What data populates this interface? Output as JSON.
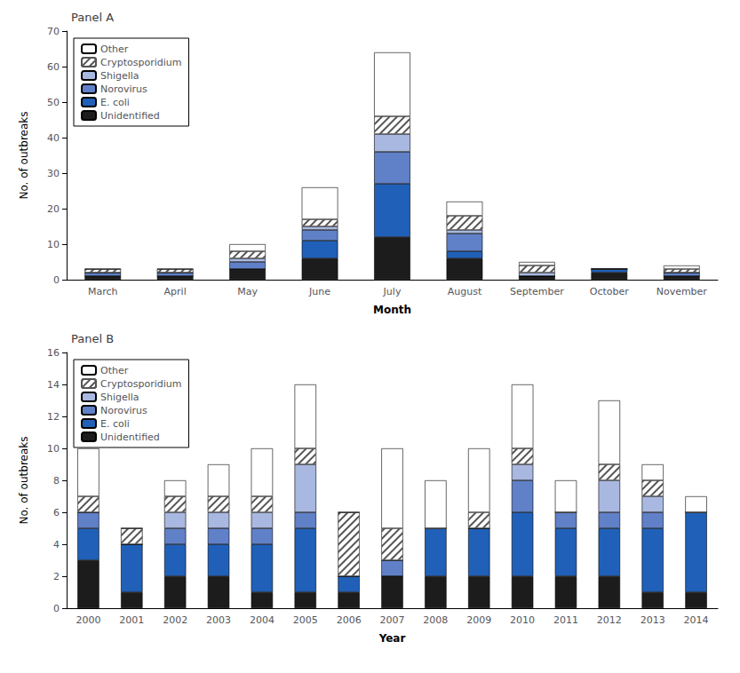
{
  "chart_data": [
    {
      "type": "bar",
      "title": "Panel A",
      "xlabel": "Month",
      "ylabel": "No. of outbreaks",
      "stacked": true,
      "grid": false,
      "legend": "upper left",
      "ylim": [
        0,
        70
      ],
      "yticks": [
        0,
        10,
        20,
        30,
        40,
        50,
        60,
        70
      ],
      "categories": [
        "March",
        "April",
        "May",
        "June",
        "July",
        "August",
        "September",
        "October",
        "November"
      ],
      "series": [
        {
          "name": "Unidentified",
          "color": "#1c1c1c",
          "values": [
            1,
            1,
            3,
            6,
            12,
            6,
            1,
            2,
            1
          ]
        },
        {
          "name": "E. coli",
          "color": "#2060b8",
          "values": [
            0,
            0,
            0,
            5,
            15,
            2,
            0,
            1,
            0
          ]
        },
        {
          "name": "Norovirus",
          "color": "#6080c8",
          "values": [
            1,
            1,
            2,
            3,
            9,
            5,
            0,
            0,
            1
          ]
        },
        {
          "name": "Shigella",
          "color": "#a8b8e0",
          "values": [
            0,
            0,
            1,
            1,
            5,
            1,
            1,
            0,
            0
          ]
        },
        {
          "name": "Cryptosporidium",
          "color": "#ffffff",
          "values": [
            1,
            1,
            2,
            2,
            5,
            4,
            2,
            0,
            1
          ]
        },
        {
          "name": "Other",
          "color": "#ffffff",
          "values": [
            0,
            0,
            2,
            9,
            18,
            4,
            1,
            0,
            1
          ]
        }
      ]
    },
    {
      "type": "bar",
      "title": "Panel B",
      "xlabel": "Year",
      "ylabel": "No. of outbreaks",
      "stacked": true,
      "grid": false,
      "legend": "upper left",
      "ylim": [
        0,
        16
      ],
      "yticks": [
        0,
        2,
        4,
        6,
        8,
        10,
        12,
        14,
        16
      ],
      "categories": [
        "2000",
        "2001",
        "2002",
        "2003",
        "2004",
        "2005",
        "2006",
        "2007",
        "2008",
        "2009",
        "2010",
        "2011",
        "2012",
        "2013",
        "2014"
      ],
      "series": [
        {
          "name": "Unidentified",
          "color": "#1c1c1c",
          "values": [
            3,
            1,
            2,
            2,
            1,
            1,
            1,
            2,
            2,
            2,
            2,
            2,
            2,
            1,
            1
          ]
        },
        {
          "name": "E. coli",
          "color": "#2060b8",
          "values": [
            2,
            3,
            2,
            2,
            3,
            4,
            1,
            0,
            3,
            3,
            4,
            3,
            3,
            4,
            5
          ]
        },
        {
          "name": "Norovirus",
          "color": "#6080c8",
          "values": [
            1,
            0,
            1,
            1,
            1,
            1,
            0,
            1,
            0,
            0,
            2,
            1,
            1,
            1,
            0
          ]
        },
        {
          "name": "Shigella",
          "color": "#a8b8e0",
          "values": [
            0,
            0,
            1,
            1,
            1,
            3,
            0,
            0,
            0,
            0,
            1,
            0,
            2,
            1,
            0
          ]
        },
        {
          "name": "Cryptosporidium",
          "color": "#ffffff",
          "values": [
            1,
            1,
            1,
            1,
            1,
            1,
            4,
            2,
            0,
            1,
            1,
            0,
            1,
            1,
            0
          ]
        },
        {
          "name": "Other",
          "color": "#ffffff",
          "values": [
            3,
            0,
            1,
            2,
            3,
            4,
            0,
            5,
            3,
            4,
            4,
            2,
            4,
            1,
            1
          ]
        }
      ]
    }
  ]
}
